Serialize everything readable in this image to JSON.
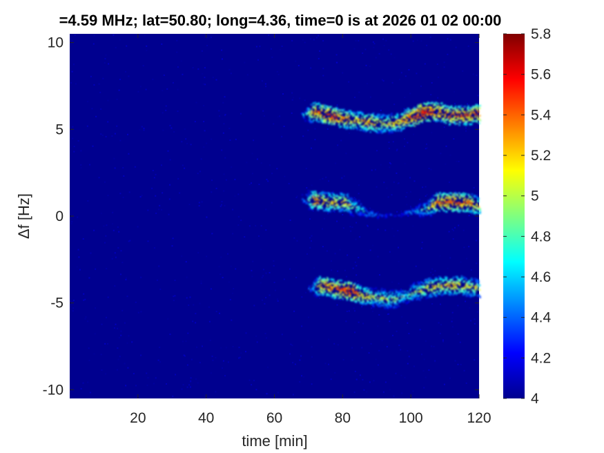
{
  "chart_data": {
    "type": "heatmap",
    "title": "=4.59 MHz;  lat=50.80; long=4.36, time=0 is at 2026 01 02 00:00",
    "xlabel": "time [min]",
    "ylabel": "Δf [Hz]",
    "xlim": [
      0,
      120
    ],
    "ylim": [
      -10.5,
      10.5
    ],
    "x_ticks": [
      20,
      40,
      60,
      80,
      100,
      120
    ],
    "x_tick_labels": [
      "20",
      "40",
      "60",
      "80",
      "100",
      "120"
    ],
    "y_ticks": [
      -10,
      -5,
      0,
      5,
      10
    ],
    "y_tick_labels": [
      "-10",
      "-5",
      "0",
      "5",
      "10"
    ],
    "colorbar": {
      "colormap": "jet",
      "range": [
        4,
        5.8
      ],
      "ticks": [
        4,
        4.2,
        4.4,
        4.6,
        4.8,
        5,
        5.2,
        5.4,
        5.6,
        5.8
      ],
      "tick_labels": [
        "4",
        "4.2",
        "4.4",
        "4.6",
        "4.8",
        "5",
        "5.2",
        "5.4",
        "5.6",
        "5.8"
      ]
    },
    "background_value": 4.0,
    "traces": [
      {
        "x": [
          68,
          72,
          76,
          80,
          84,
          88,
          92,
          96,
          100,
          104,
          108,
          112,
          116,
          120
        ],
        "y": [
          5.8,
          6.0,
          5.8,
          5.6,
          5.5,
          5.4,
          5.3,
          5.4,
          5.7,
          6.0,
          6.0,
          5.8,
          5.8,
          5.9
        ],
        "peak": [
          4.8,
          5.6,
          5.7,
          5.6,
          5.4,
          5.5,
          5.3,
          5.4,
          5.7,
          5.8,
          5.6,
          5.6,
          5.6,
          5.7
        ]
      },
      {
        "x": [
          68,
          72,
          76,
          80,
          84,
          88,
          92,
          96,
          100,
          104,
          108,
          112,
          116,
          120
        ],
        "y": [
          1.0,
          0.9,
          0.8,
          0.8,
          0.5,
          0.1,
          0.0,
          0.1,
          0.2,
          0.4,
          0.8,
          0.8,
          0.8,
          0.6
        ],
        "peak": [
          4.6,
          5.6,
          5.4,
          5.4,
          5.0,
          4.6,
          4.4,
          4.4,
          4.6,
          5.0,
          5.6,
          5.7,
          5.6,
          5.4
        ]
      },
      {
        "x": [
          70,
          74,
          78,
          82,
          86,
          90,
          94,
          98,
          102,
          106,
          110,
          114,
          118,
          120
        ],
        "y": [
          -4.2,
          -4.0,
          -4.2,
          -4.3,
          -4.6,
          -4.7,
          -4.8,
          -4.6,
          -4.3,
          -4.1,
          -4.0,
          -4.0,
          -4.1,
          -4.2
        ],
        "peak": [
          4.6,
          5.6,
          5.6,
          5.8,
          5.4,
          5.2,
          5.2,
          5.0,
          5.2,
          5.4,
          5.4,
          5.4,
          5.3,
          5.2
        ]
      }
    ]
  }
}
